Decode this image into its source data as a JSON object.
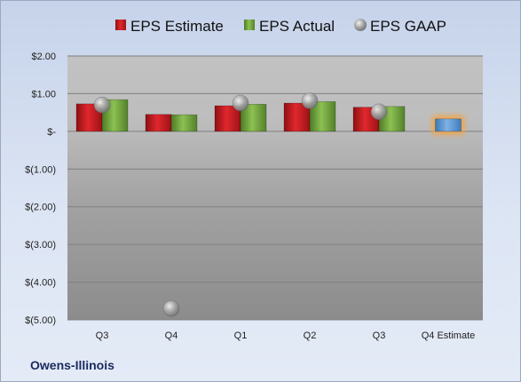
{
  "chart_data": {
    "type": "bar",
    "categories": [
      "Q3",
      "Q4",
      "Q1",
      "Q2",
      "Q3",
      "Q4 Estimate"
    ],
    "series": [
      {
        "name": "EPS Estimate",
        "type": "bar",
        "color": "#c8191e",
        "values": [
          0.73,
          0.45,
          0.68,
          0.75,
          0.64,
          null
        ]
      },
      {
        "name": "EPS Actual",
        "type": "bar",
        "color": "#6fa23c",
        "values": [
          0.84,
          0.44,
          0.72,
          0.79,
          0.66,
          null
        ]
      },
      {
        "name": "EPS GAAP",
        "type": "scatter",
        "color": "#a0a0a0",
        "values": [
          0.7,
          -4.7,
          0.75,
          0.81,
          0.52,
          null
        ]
      },
      {
        "name": "",
        "type": "bar",
        "color": "#5b9bd5",
        "highlight": "#f5a340",
        "values": [
          null,
          null,
          null,
          null,
          null,
          0.33
        ]
      }
    ],
    "y_ticks": [
      "$2.00",
      "$1.00",
      "$-",
      "$(1.00)",
      "$(2.00)",
      "$(3.00)",
      "$(4.00)",
      "$(5.00)"
    ],
    "ylim": [
      -5,
      2
    ],
    "grid": true,
    "legend_position": "top",
    "title": "",
    "xlabel": "",
    "ylabel": ""
  },
  "footer": {
    "company": "Owens-Illinois"
  }
}
